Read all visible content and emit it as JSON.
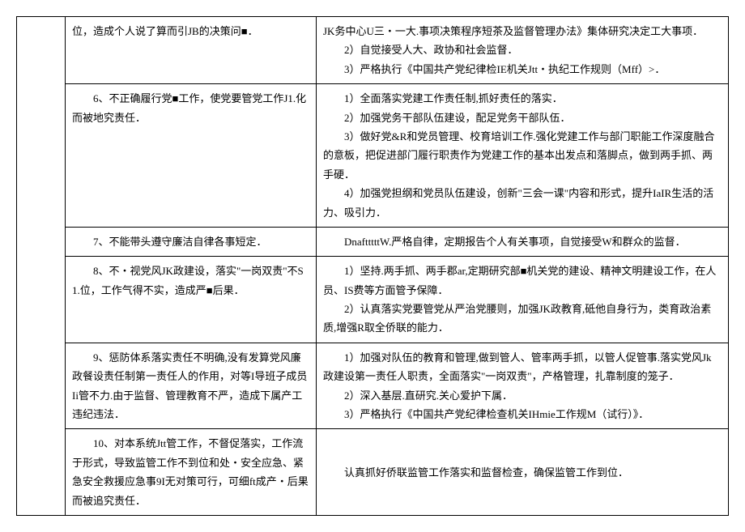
{
  "rows": [
    {
      "left": "位，造成个人说了算而引JB的决策问■．",
      "right": [
        "JK务中心U三・一大.事项决策程序短茶及监督管理办法》集体研究决定工大事项．",
        "　　2）自觉接受人大、政协和社会监督．",
        "　　3）严格执行《中国共产党纪律检IE机关Jtt・执纪工作规则（Mff）>．"
      ]
    },
    {
      "left": "　　6、不正确履行党■工作，使党要管党工作J1.化而被地究责任．",
      "right": [
        "　　1）全面落实党建工作责任制,抓好责任的落实．",
        "　　2）加强党务干部队伍建设，配足党务干部队伍．",
        "　　3）做好党&R和党员管理、校育培训工作.强化党建工作与部门职能工作深度融合的意板，把促进部门履行职责作为党建工作的基本出发点和落脚点，做到两手抓、两手硬．",
        "　　4）加强党担纲和党员队伍建设，创新\"三会一课\"内容和形式，提升IaIR生活的活力、吸引力．"
      ]
    },
    {
      "left": "　　7、不能带头遵守廉洁自律各事短定．",
      "right": [
        "　　DnaftttttW.严格自律，定期报告个人有关事项，自觉接受W和群众的监督．"
      ]
    },
    {
      "left": "　　8、不・视党风JK政建设，落实\"一岗双责\"不S1.位，工作气得不实，造成严■后果．",
      "right": [
        "　　1）坚持.两手抓、两手郡ar,定期研究部■机关党的建设、精神文明建设工作，在人员、IS费等方面管予保障．",
        "　　2）认真落实党要管党从严治党腰则，加强JK政教育,砥他自身行为，类育政治素质,增强R取全侨联的能力．"
      ]
    },
    {
      "left": "　　9、惩防体系落实责任不明确,没有发算党风廉政餐设责任制第一责任人的作用，对等I导班子成员Ii管不力.由于监督、管理教育不严，造成下属产工违纪违法．",
      "right": [
        "　　1）加强对队伍的教育和管理,做到管人、管率两手抓，以管人促管事.落实党风Jk政建设第一责任人职责，全面落实\"一岗双责\"，产格管理，扎靠制度的笼子．",
        "　　2）深入基层.直研究.关心爱护下属．",
        "　　3）严格执行《中国共产党纪律检查机关IHmie工作规M（试行）》．"
      ]
    },
    {
      "left": "　　10、对本系统Jtt管工作，不督促落实，工作流于形式，导致监管工作不到位和处・安全应急、紧急安全救援应急事9I无对策可行，可细ft成产・后果而被追究责任．",
      "right": [
        "",
        "　　认真抓好侨联监管工作落实和监督检查，确保监管工作到位．",
        ""
      ]
    }
  ]
}
